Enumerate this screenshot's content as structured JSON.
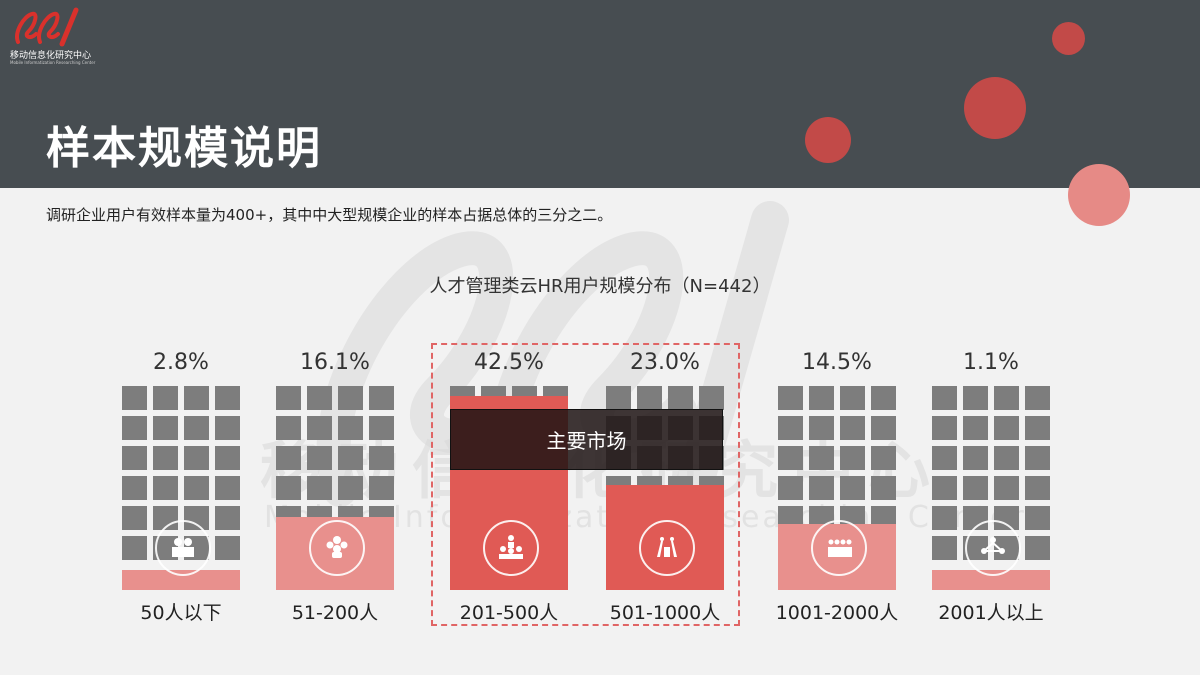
{
  "logo": {
    "text": "移动信息化研究中心",
    "sub": "Mobile Informatization Researching Center",
    "icon": "logo-icon"
  },
  "header": {
    "title": "样本规模说明"
  },
  "subtitle": "调研企业用户有效样本量为400+，其中中大型规模企业的样本占据总体的三分之二。",
  "watermark": {
    "cn": "移动信息化研究中心",
    "en": "Mobile Informatization Researching Center"
  },
  "highlight_label": "主要市场",
  "colors": {
    "header": "#474d51",
    "accent": "#e05a55",
    "light_red": "#e8908d",
    "window": "#7d7d7d"
  },
  "chart_data": {
    "type": "bar",
    "title": "人才管理类云HR用户规模分布（N=442）",
    "categories": [
      "50人以下",
      "51-200人",
      "201-500人",
      "501-1000人",
      "1001-2000人",
      "2001人以上"
    ],
    "values": [
      2.8,
      16.1,
      42.5,
      23.0,
      14.5,
      1.1
    ],
    "value_labels": [
      "2.8%",
      "16.1%",
      "42.5%",
      "23.0%",
      "14.5%",
      "1.1%"
    ],
    "unit": "%",
    "icons": [
      "people-icon",
      "group-icon",
      "presenter-icon",
      "audience-icon",
      "crowd-icon",
      "network-icon"
    ],
    "highlighted": [
      "201-500人",
      "501-1000人"
    ]
  }
}
